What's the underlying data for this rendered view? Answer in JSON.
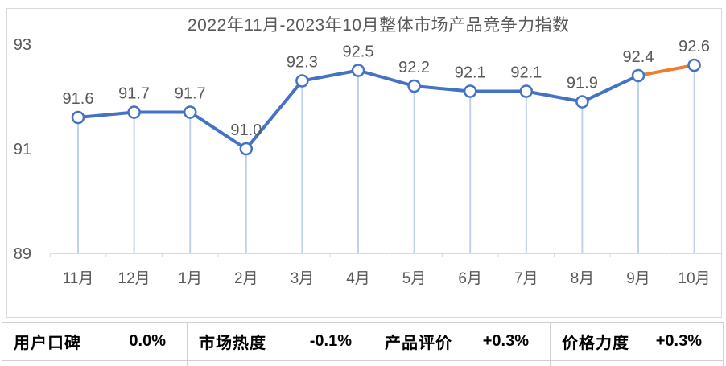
{
  "chart_data": {
    "type": "line",
    "title": "2022年11月-2023年10月整体市场产品竞争力指数",
    "categories": [
      "11月",
      "12月",
      "1月",
      "2月",
      "3月",
      "4月",
      "5月",
      "6月",
      "7月",
      "8月",
      "9月",
      "10月"
    ],
    "values": [
      91.6,
      91.7,
      91.7,
      91.0,
      92.3,
      92.5,
      92.2,
      92.1,
      92.1,
      91.9,
      92.4,
      92.6
    ],
    "y_ticks": [
      93,
      91,
      89
    ],
    "ylim": [
      89,
      93
    ],
    "grid": "off",
    "legend": "none",
    "line_color": "#4472C4",
    "highlight_segment_color": "#ED7D31",
    "highlight_segment_start_index": 10,
    "marker_fill": "#FFFFFF",
    "drop_line_color": "#BCD2EE",
    "axis_color": "#D9D9D9",
    "label_color": "#595959"
  },
  "metrics": [
    {
      "label": "用户口碑",
      "value": "0.0%"
    },
    {
      "label": "市场热度",
      "value": "-0.1%"
    },
    {
      "label": "产品评价",
      "value": "+0.3%"
    },
    {
      "label": "价格力度",
      "value": "+0.3%"
    }
  ]
}
